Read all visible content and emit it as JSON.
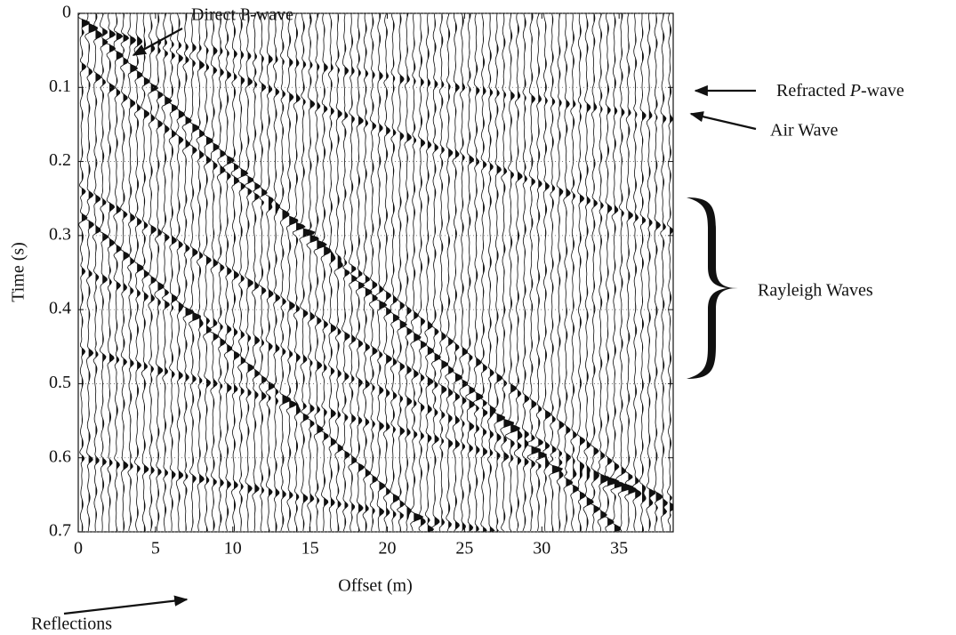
{
  "chart_data": {
    "type": "wiggle",
    "xlabel": "Offset (m)",
    "ylabel": "Time (s)",
    "xlim": [
      0,
      38.5
    ],
    "xticks": [
      0,
      5,
      10,
      15,
      20,
      25,
      30,
      35
    ],
    "ylim": [
      0,
      0.7
    ],
    "yticks": [
      0,
      0.1,
      0.2,
      0.3,
      0.4,
      0.5,
      0.6,
      0.7
    ],
    "y_inverted": true,
    "grid": true,
    "annotations": {
      "direct": "Direct P-wave",
      "refracted": [
        "Refracted ",
        "P",
        "-wave"
      ],
      "air": "Air Wave",
      "rayleigh": "Rayleigh Waves",
      "reflections": "Reflections"
    }
  }
}
